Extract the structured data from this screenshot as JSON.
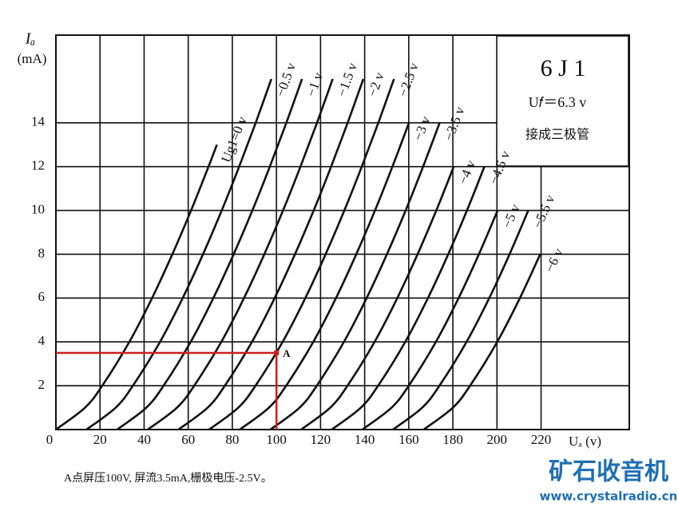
{
  "chart_data": {
    "type": "line",
    "x_label": "Uₐ (v)",
    "y_label": "Iₐ",
    "y_unit": "(mA)",
    "xlim": [
      0,
      260
    ],
    "ylim": [
      0,
      18
    ],
    "xticks": [
      0,
      20,
      40,
      60,
      80,
      100,
      120,
      140,
      160,
      180,
      200,
      220
    ],
    "yticks": [
      2,
      4,
      6,
      8,
      10,
      12,
      14
    ],
    "grid": true,
    "info_box": {
      "title": "6 J 1",
      "line1": "U𝑓＝6.3 v",
      "line2": "接成三极管"
    },
    "point": {
      "label": "A",
      "x": 100,
      "y": 3.5,
      "color": "#cc1f1f"
    },
    "caption": "A点屏压100V, 屏流3.5mA,栅极电压-2.5V。",
    "watermark": {
      "title": "矿石收音机",
      "url": "www.crystalradio.cn",
      "color": "#1f6fb4"
    },
    "series": [
      {
        "name": "Ug1=0 v",
        "color": "#111111",
        "x": [
          0,
          13.2,
          21.0,
          33.3,
          43.6,
          52.8,
          61.3,
          69.2,
          73.0
        ],
        "values": [
          0,
          1,
          2,
          4,
          6,
          8,
          10,
          12,
          13
        ]
      },
      {
        "name": "−0.5 v",
        "color": "#111111",
        "x": [
          13.9,
          27.1,
          34.9,
          47.2,
          57.5,
          66.7,
          75.2,
          83.1,
          90.6,
          97.7
        ],
        "values": [
          0,
          1,
          2,
          4,
          6,
          8,
          10,
          12,
          14,
          16
        ]
      },
      {
        "name": "−1 v",
        "color": "#111111",
        "x": [
          27.8,
          41.0,
          48.8,
          61.1,
          71.4,
          80.6,
          89.1,
          97.0,
          104.5,
          111.6
        ],
        "values": [
          0,
          1,
          2,
          4,
          6,
          8,
          10,
          12,
          14,
          16
        ]
      },
      {
        "name": "−1.5 v",
        "color": "#111111",
        "x": [
          41.7,
          54.9,
          62.7,
          75.0,
          85.3,
          94.5,
          103.0,
          110.9,
          118.4,
          125.5
        ],
        "values": [
          0,
          1,
          2,
          4,
          6,
          8,
          10,
          12,
          14,
          16
        ]
      },
      {
        "name": "−2 v",
        "color": "#111111",
        "x": [
          55.6,
          68.8,
          76.6,
          88.9,
          99.2,
          108.4,
          116.9,
          124.8,
          132.3,
          139.4
        ],
        "values": [
          0,
          1,
          2,
          4,
          6,
          8,
          10,
          12,
          14,
          16
        ]
      },
      {
        "name": "−2.5 v",
        "color": "#111111",
        "x": [
          69.5,
          82.7,
          90.5,
          102.8,
          113.1,
          122.3,
          130.8,
          138.7,
          146.2,
          153.3
        ],
        "values": [
          0,
          1,
          2,
          4,
          6,
          8,
          10,
          12,
          14,
          16
        ]
      },
      {
        "name": "−3 v",
        "color": "#111111",
        "x": [
          83.4,
          96.6,
          104.4,
          116.7,
          127.0,
          136.2,
          144.7,
          152.6,
          160.1
        ],
        "values": [
          0,
          1,
          2,
          4,
          6,
          8,
          10,
          12,
          14
        ]
      },
      {
        "name": "−3.5 v",
        "color": "#111111",
        "x": [
          97.3,
          110.5,
          118.3,
          130.6,
          140.9,
          150.1,
          158.6,
          166.5,
          174.0
        ],
        "values": [
          0,
          1,
          2,
          4,
          6,
          8,
          10,
          12,
          14
        ]
      },
      {
        "name": "−4 v",
        "color": "#111111",
        "x": [
          111.2,
          124.4,
          132.2,
          144.5,
          154.8,
          164.0,
          172.5,
          180.4
        ],
        "values": [
          0,
          1,
          2,
          4,
          6,
          8,
          10,
          12
        ]
      },
      {
        "name": "−4.5 v",
        "color": "#111111",
        "x": [
          125.1,
          138.3,
          146.1,
          158.4,
          168.7,
          177.9,
          186.4,
          194.3
        ],
        "values": [
          0,
          1,
          2,
          4,
          6,
          8,
          10,
          12
        ]
      },
      {
        "name": "−5 v",
        "color": "#111111",
        "x": [
          139.0,
          152.2,
          160.0,
          172.3,
          182.6,
          191.8,
          200.3
        ],
        "values": [
          0,
          1,
          2,
          4,
          6,
          8,
          10
        ]
      },
      {
        "name": "−5.5 v",
        "color": "#111111",
        "x": [
          152.9,
          166.1,
          173.9,
          186.2,
          196.5,
          205.7,
          214.2
        ],
        "values": [
          0,
          1,
          2,
          4,
          6,
          8,
          10
        ]
      },
      {
        "name": "−6 v",
        "color": "#111111",
        "x": [
          166.8,
          180.0,
          187.8,
          200.1,
          210.4,
          219.6
        ],
        "values": [
          0,
          1,
          2,
          4,
          6,
          8
        ]
      }
    ]
  }
}
